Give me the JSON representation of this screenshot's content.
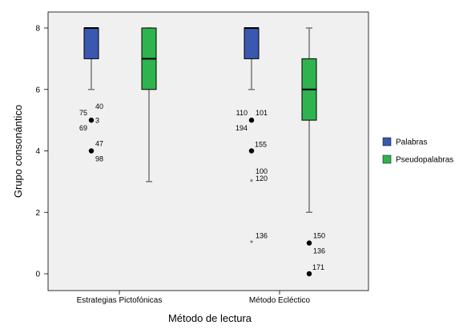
{
  "chart_data": {
    "type": "boxplot",
    "xlabel": "Método de lectura",
    "ylabel": "Grupo consonántico",
    "ylim": [
      0,
      8
    ],
    "yticks": [
      0,
      2,
      4,
      6,
      8
    ],
    "grid": false,
    "legend_position": "right",
    "categories": [
      "Estrategias Pictofónicas",
      "Método Ecléctico"
    ],
    "series": [
      {
        "name": "Palabras",
        "color": "#3a58b0",
        "boxes": [
          {
            "min": 6,
            "q1": 7,
            "median": 8,
            "q3": 8,
            "max": 8,
            "outliers": [
              {
                "value": 5,
                "marker": "circle",
                "labels": [
                  "75",
                  "40",
                  "3",
                  "69"
                ]
              },
              {
                "value": 4,
                "marker": "circle",
                "labels": [
                  "47",
                  "98"
                ]
              }
            ]
          },
          {
            "min": 6,
            "q1": 7,
            "median": 8,
            "q3": 8,
            "max": 8,
            "outliers": [
              {
                "value": 5,
                "marker": "circle",
                "labels": [
                  "110",
                  "101",
                  "194"
                ]
              },
              {
                "value": 4,
                "marker": "circle",
                "labels": [
                  "155"
                ]
              },
              {
                "value": 3,
                "marker": "star",
                "labels": [
                  "100",
                  "120"
                ]
              },
              {
                "value": 1,
                "marker": "star",
                "labels": [
                  "136"
                ]
              }
            ]
          }
        ]
      },
      {
        "name": "Pseudopalabras",
        "color": "#2eb34e",
        "boxes": [
          {
            "min": 3,
            "q1": 6,
            "median": 7,
            "q3": 8,
            "max": 8,
            "outliers": []
          },
          {
            "min": 2,
            "q1": 5,
            "median": 6,
            "q3": 7,
            "max": 8,
            "outliers": [
              {
                "value": 1,
                "marker": "circle",
                "labels": [
                  "150",
                  "136"
                ]
              },
              {
                "value": 0,
                "marker": "circle",
                "labels": [
                  "171"
                ]
              }
            ]
          }
        ]
      }
    ]
  }
}
